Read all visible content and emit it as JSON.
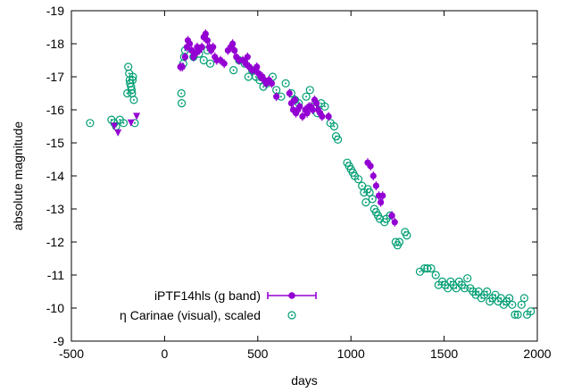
{
  "chart_data": {
    "type": "scatter",
    "xlabel": "days",
    "ylabel": "absolute magnitude",
    "xlim": [
      -500,
      2000
    ],
    "ylim": [
      -9,
      -19
    ],
    "y_inverted": true,
    "x_ticks": [
      "-500",
      "0",
      "500",
      "1000",
      "1500",
      "2000"
    ],
    "y_ticks": [
      "-9",
      "-10",
      "-11",
      "-12",
      "-13",
      "-14",
      "-15",
      "-16",
      "-17",
      "-18",
      "-19"
    ],
    "x_tick_values": [
      -500,
      0,
      500,
      1000,
      1500,
      2000
    ],
    "y_tick_values": [
      -9,
      -10,
      -11,
      -12,
      -13,
      -14,
      -15,
      -16,
      -17,
      -18,
      -19
    ],
    "grid": false,
    "legend_position": "bottom-left",
    "series": [
      {
        "name": "iPTF14hls (g band)",
        "color": "#9400d3",
        "marker": "filled-circle-errorbar",
        "points": [
          [
            85,
            -17.3
          ],
          [
            95,
            -17.3
          ],
          [
            110,
            -17.6
          ],
          [
            120,
            -17.9
          ],
          [
            125,
            -18.1
          ],
          [
            135,
            -18.0
          ],
          [
            145,
            -17.8
          ],
          [
            155,
            -17.6
          ],
          [
            165,
            -17.7
          ],
          [
            175,
            -17.9
          ],
          [
            185,
            -17.8
          ],
          [
            200,
            -17.9
          ],
          [
            210,
            -18.2
          ],
          [
            220,
            -18.3
          ],
          [
            230,
            -18.1
          ],
          [
            240,
            -17.9
          ],
          [
            250,
            -17.8
          ],
          [
            260,
            -17.9
          ],
          [
            270,
            -17.6
          ],
          [
            280,
            -17.5
          ],
          [
            300,
            -17.5
          ],
          [
            320,
            -17.4
          ],
          [
            340,
            -17.8
          ],
          [
            355,
            -17.9
          ],
          [
            365,
            -18.0
          ],
          [
            375,
            -17.8
          ],
          [
            385,
            -17.6
          ],
          [
            400,
            -17.5
          ],
          [
            420,
            -17.5
          ],
          [
            435,
            -17.4
          ],
          [
            445,
            -17.6
          ],
          [
            455,
            -17.3
          ],
          [
            470,
            -17.2
          ],
          [
            485,
            -17.2
          ],
          [
            495,
            -17.3
          ],
          [
            505,
            -17.1
          ],
          [
            515,
            -17.0
          ],
          [
            525,
            -17.0
          ],
          [
            535,
            -16.9
          ],
          [
            545,
            -16.8
          ],
          [
            560,
            -16.9
          ],
          [
            575,
            -16.8
          ],
          [
            600,
            -16.4
          ],
          [
            670,
            -16.5
          ],
          [
            680,
            -16.2
          ],
          [
            690,
            -16.0
          ],
          [
            700,
            -16.3
          ],
          [
            705,
            -15.9
          ],
          [
            715,
            -16.0
          ],
          [
            725,
            -16.1
          ],
          [
            740,
            -15.8
          ],
          [
            755,
            -16.0
          ],
          [
            765,
            -15.9
          ],
          [
            775,
            -16.1
          ],
          [
            785,
            -16.1
          ],
          [
            795,
            -16.0
          ],
          [
            805,
            -16.3
          ],
          [
            815,
            -16.2
          ],
          [
            825,
            -16.0
          ],
          [
            835,
            -15.9
          ],
          [
            845,
            -15.8
          ],
          [
            880,
            -15.8
          ],
          [
            1090,
            -14.4
          ],
          [
            1105,
            -14.3
          ],
          [
            1120,
            -14.0
          ],
          [
            1135,
            -13.7
          ],
          [
            1150,
            -13.4
          ],
          [
            1160,
            -13.2
          ],
          [
            1170,
            -13.4
          ],
          [
            1220,
            -12.8
          ],
          [
            1235,
            -12.6
          ]
        ],
        "upper_limits": [
          [
            -270,
            -15.5
          ],
          [
            -250,
            -15.3
          ],
          [
            -180,
            -15.6
          ],
          [
            -150,
            -15.8
          ]
        ]
      },
      {
        "name": "η Carinae (visual), scaled",
        "color": "#009e73",
        "marker": "open-circle-dot",
        "points": [
          [
            -400,
            -15.6
          ],
          [
            -285,
            -15.7
          ],
          [
            -270,
            -15.6
          ],
          [
            -260,
            -15.5
          ],
          [
            -240,
            -15.7
          ],
          [
            -220,
            -15.6
          ],
          [
            -200,
            -16.5
          ],
          [
            -195,
            -17.3
          ],
          [
            -190,
            -17.1
          ],
          [
            -187,
            -16.9
          ],
          [
            -185,
            -16.8
          ],
          [
            -180,
            -16.7
          ],
          [
            -177,
            -16.6
          ],
          [
            -175,
            -16.5
          ],
          [
            -172,
            -16.9
          ],
          [
            -170,
            -17.0
          ],
          [
            -165,
            -16.3
          ],
          [
            -160,
            -15.6
          ],
          [
            90,
            -16.5
          ],
          [
            92,
            -16.2
          ],
          [
            100,
            -17.4
          ],
          [
            105,
            -17.6
          ],
          [
            110,
            -17.8
          ],
          [
            155,
            -17.6
          ],
          [
            185,
            -17.7
          ],
          [
            210,
            -17.5
          ],
          [
            230,
            -17.8
          ],
          [
            245,
            -17.4
          ],
          [
            370,
            -17.2
          ],
          [
            400,
            -17.5
          ],
          [
            430,
            -17.4
          ],
          [
            450,
            -17.0
          ],
          [
            470,
            -17.2
          ],
          [
            490,
            -17.0
          ],
          [
            510,
            -16.9
          ],
          [
            530,
            -16.7
          ],
          [
            550,
            -16.8
          ],
          [
            580,
            -17.0
          ],
          [
            600,
            -16.6
          ],
          [
            625,
            -16.4
          ],
          [
            650,
            -16.8
          ],
          [
            680,
            -16.5
          ],
          [
            700,
            -16.3
          ],
          [
            720,
            -16.2
          ],
          [
            760,
            -16.4
          ],
          [
            780,
            -16.6
          ],
          [
            800,
            -16.1
          ],
          [
            820,
            -15.9
          ],
          [
            840,
            -16.2
          ],
          [
            860,
            -16.1
          ],
          [
            890,
            -15.6
          ],
          [
            910,
            -15.5
          ],
          [
            920,
            -15.2
          ],
          [
            930,
            -15.1
          ],
          [
            980,
            -14.4
          ],
          [
            990,
            -14.3
          ],
          [
            1000,
            -14.2
          ],
          [
            1010,
            -14.1
          ],
          [
            1020,
            -14.0
          ],
          [
            1040,
            -13.9
          ],
          [
            1060,
            -13.7
          ],
          [
            1070,
            -13.5
          ],
          [
            1080,
            -13.2
          ],
          [
            1090,
            -13.6
          ],
          [
            1100,
            -13.5
          ],
          [
            1115,
            -13.3
          ],
          [
            1125,
            -13.0
          ],
          [
            1135,
            -12.9
          ],
          [
            1145,
            -12.8
          ],
          [
            1155,
            -12.7
          ],
          [
            1180,
            -12.6
          ],
          [
            1190,
            -12.7
          ],
          [
            1210,
            -12.8
          ],
          [
            1240,
            -12.0
          ],
          [
            1250,
            -11.9
          ],
          [
            1260,
            -12.0
          ],
          [
            1290,
            -12.3
          ],
          [
            1300,
            -12.2
          ],
          [
            1370,
            -11.1
          ],
          [
            1395,
            -11.2
          ],
          [
            1410,
            -11.2
          ],
          [
            1430,
            -11.2
          ],
          [
            1455,
            -11.0
          ],
          [
            1470,
            -10.7
          ],
          [
            1490,
            -10.8
          ],
          [
            1505,
            -10.7
          ],
          [
            1520,
            -10.6
          ],
          [
            1535,
            -10.8
          ],
          [
            1550,
            -10.7
          ],
          [
            1565,
            -10.6
          ],
          [
            1580,
            -10.8
          ],
          [
            1595,
            -10.7
          ],
          [
            1610,
            -10.6
          ],
          [
            1625,
            -10.9
          ],
          [
            1640,
            -10.6
          ],
          [
            1655,
            -10.5
          ],
          [
            1670,
            -10.4
          ],
          [
            1685,
            -10.5
          ],
          [
            1700,
            -10.3
          ],
          [
            1715,
            -10.4
          ],
          [
            1730,
            -10.5
          ],
          [
            1745,
            -10.2
          ],
          [
            1760,
            -10.3
          ],
          [
            1775,
            -10.4
          ],
          [
            1790,
            -10.2
          ],
          [
            1805,
            -10.3
          ],
          [
            1820,
            -10.1
          ],
          [
            1835,
            -10.2
          ],
          [
            1850,
            -10.3
          ],
          [
            1865,
            -10.1
          ],
          [
            1880,
            -9.8
          ],
          [
            1895,
            -9.8
          ],
          [
            1915,
            -10.1
          ],
          [
            1930,
            -10.3
          ],
          [
            1945,
            -9.8
          ],
          [
            1965,
            -9.9
          ]
        ]
      }
    ]
  }
}
